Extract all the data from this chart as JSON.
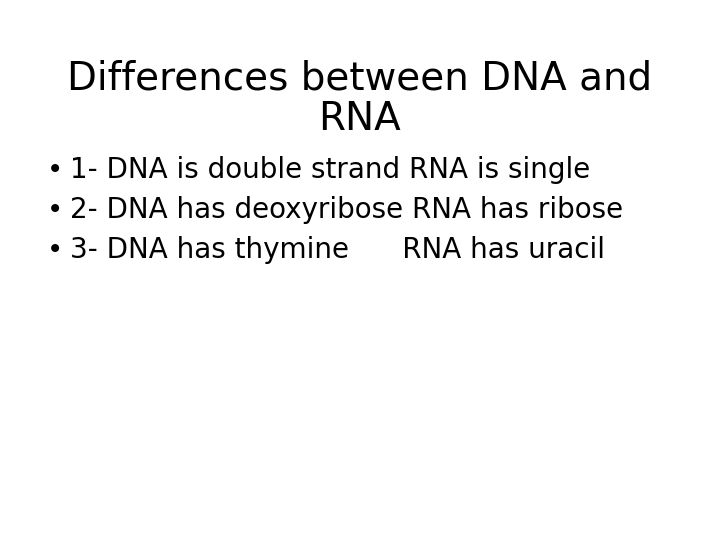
{
  "title_line1": "Differences between DNA and",
  "title_line2": "RNA",
  "bullet_points": [
    "1- DNA is double strand RNA is single",
    "2- DNA has deoxyribose RNA has ribose",
    "3- DNA has thymine      RNA has uracil"
  ],
  "background_color": "#ffffff",
  "text_color": "#000000",
  "title_fontsize": 28,
  "bullet_fontsize": 20,
  "font_family": "DejaVu Sans"
}
